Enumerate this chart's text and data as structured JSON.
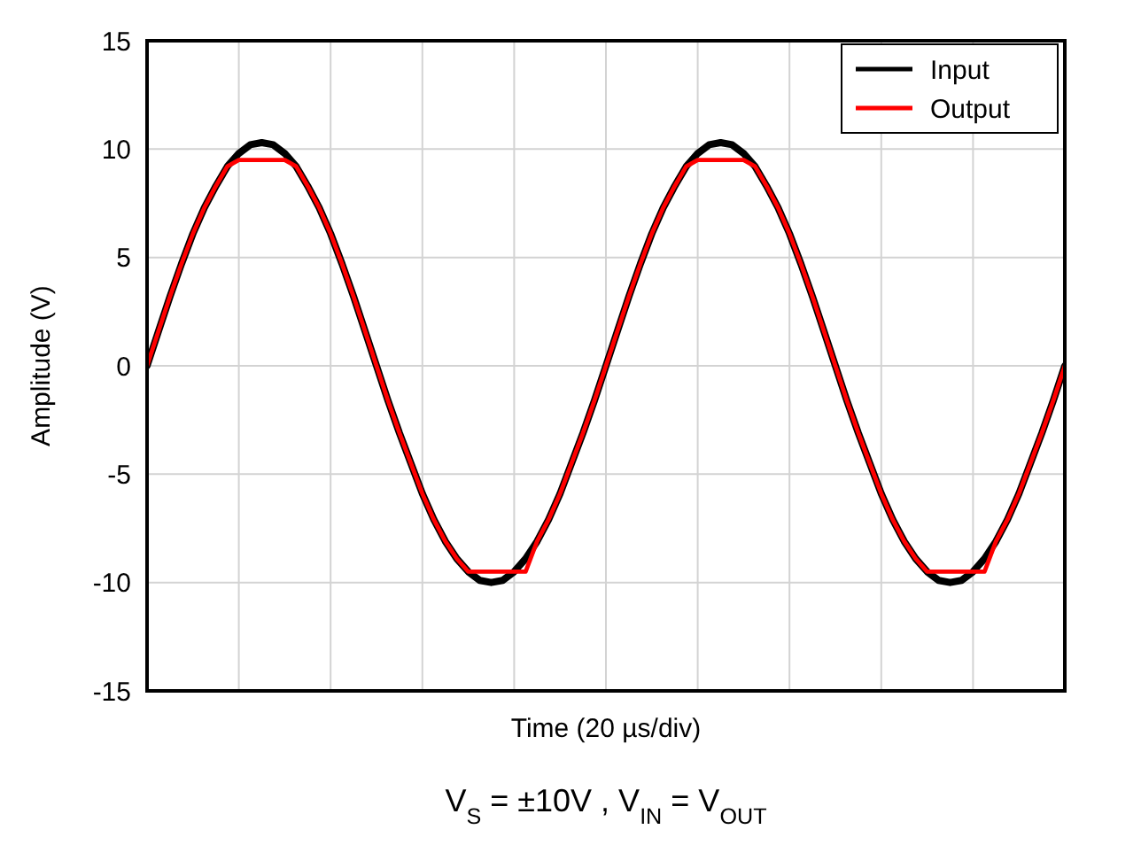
{
  "chart_data": {
    "type": "line",
    "xlabel": "Time (20 µs/div)",
    "ylabel": "Amplitude (V)",
    "annotations": [
      "V$_{S}$ = ±10V , V$_{IN}$ = V$_{OUT}$"
    ],
    "categories": [
      null,
      null,
      null,
      null,
      null,
      null,
      null,
      null,
      null,
      null,
      null,
      null,
      null,
      null,
      null,
      null,
      null,
      null,
      null,
      null,
      null,
      null,
      null,
      null,
      null,
      null,
      null,
      null,
      null,
      null,
      null,
      null,
      null,
      null,
      null,
      null,
      null,
      null,
      null,
      null,
      null,
      null,
      null,
      null,
      null,
      null,
      null,
      null,
      null,
      null,
      null,
      null,
      null,
      null,
      null,
      null,
      null,
      null,
      null,
      null,
      null,
      null,
      null,
      null,
      null,
      null,
      null,
      null,
      null,
      null,
      null,
      null,
      null,
      null,
      null,
      null,
      null,
      null,
      null,
      null,
      null
    ],
    "ylim": [
      -15,
      15
    ],
    "yticks": [
      -15,
      -10,
      -5,
      0,
      5,
      10,
      15
    ],
    "grid": true,
    "legend": "top right",
    "series": [
      {
        "name": "Input",
        "color": "#000000",
        "values": [
          0,
          1.6,
          3.2,
          4.7,
          6.1,
          7.3,
          8.3,
          9.2,
          9.8,
          10.2,
          10.3,
          10.2,
          9.8,
          9.2,
          8.3,
          7.3,
          6.1,
          4.7,
          3.2,
          1.6,
          0,
          -1.6,
          -3.1,
          -4.5,
          -5.9,
          -7.1,
          -8.1,
          -8.9,
          -9.5,
          -9.9,
          -10.0,
          -9.9,
          -9.5,
          -8.9,
          -8.1,
          -7.1,
          -5.9,
          -4.5,
          -3.1,
          -1.6,
          0,
          1.6,
          3.2,
          4.7,
          6.1,
          7.3,
          8.3,
          9.2,
          9.8,
          10.2,
          10.3,
          10.2,
          9.8,
          9.2,
          8.3,
          7.3,
          6.1,
          4.7,
          3.2,
          1.6,
          0,
          -1.6,
          -3.1,
          -4.5,
          -5.9,
          -7.1,
          -8.1,
          -8.9,
          -9.5,
          -9.9,
          -10.0,
          -9.9,
          -9.5,
          -8.9,
          -8.1,
          -7.1,
          -5.9,
          -4.5,
          -3.1,
          -1.6,
          0
        ]
      },
      {
        "name": "Output",
        "color": "#ff0000",
        "values": [
          0,
          1.6,
          3.2,
          4.7,
          6.1,
          7.3,
          8.3,
          9.2,
          9.5,
          9.5,
          9.5,
          9.5,
          9.5,
          9.2,
          8.3,
          7.3,
          6.1,
          4.7,
          3.2,
          1.6,
          0,
          -1.6,
          -3.1,
          -4.5,
          -5.9,
          -7.1,
          -8.1,
          -8.9,
          -9.5,
          -9.5,
          -9.5,
          -9.5,
          -9.5,
          -9.5,
          -8.1,
          -7.1,
          -5.9,
          -4.5,
          -3.1,
          -1.6,
          0,
          1.6,
          3.2,
          4.7,
          6.1,
          7.3,
          8.3,
          9.2,
          9.5,
          9.5,
          9.5,
          9.5,
          9.5,
          9.2,
          8.3,
          7.3,
          6.1,
          4.7,
          3.2,
          1.6,
          0,
          -1.6,
          -3.1,
          -4.5,
          -5.9,
          -7.1,
          -8.1,
          -8.9,
          -9.5,
          -9.5,
          -9.5,
          -9.5,
          -9.5,
          -9.5,
          -8.1,
          -7.1,
          -5.9,
          -4.5,
          -3.1,
          -1.6,
          0
        ]
      }
    ]
  }
}
